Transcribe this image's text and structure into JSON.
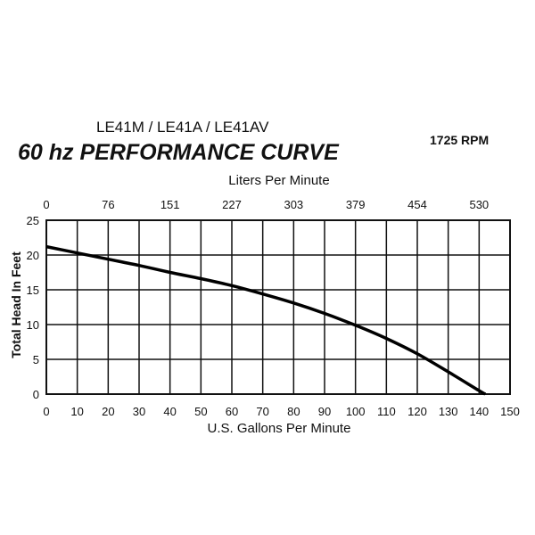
{
  "chart_data": {
    "type": "line",
    "subtitle": "LE41M / LE41A / LE41AV",
    "title": "60 hz PERFORMANCE CURVE",
    "annotation": "1725 RPM",
    "xlabel": "U.S. Gallons Per Minute",
    "x2label": "Liters Per Minute",
    "ylabel": "Total Head In Feet",
    "xlim": [
      0,
      150
    ],
    "ylim": [
      0,
      25
    ],
    "xticks": [
      0,
      10,
      20,
      30,
      40,
      50,
      60,
      70,
      80,
      90,
      100,
      110,
      120,
      130,
      140,
      150
    ],
    "x2ticks": [
      {
        "label": "0",
        "gpm": 0
      },
      {
        "label": "76",
        "gpm": 20
      },
      {
        "label": "151",
        "gpm": 40
      },
      {
        "label": "227",
        "gpm": 60
      },
      {
        "label": "303",
        "gpm": 80
      },
      {
        "label": "379",
        "gpm": 100
      },
      {
        "label": "454",
        "gpm": 120
      },
      {
        "label": "530",
        "gpm": 140
      }
    ],
    "yticks": [
      0,
      5,
      10,
      15,
      20,
      25
    ],
    "grid": true,
    "line_color": "#000000",
    "series": [
      {
        "x": [
          0,
          10,
          20,
          30,
          40,
          50,
          60,
          70,
          80,
          90,
          100,
          110,
          120,
          130,
          140,
          142
        ],
        "y": [
          21.2,
          20.3,
          19.4,
          18.5,
          17.5,
          16.6,
          15.6,
          14.4,
          13.1,
          11.6,
          9.9,
          8.0,
          5.8,
          3.2,
          0.5,
          0
        ]
      }
    ]
  }
}
